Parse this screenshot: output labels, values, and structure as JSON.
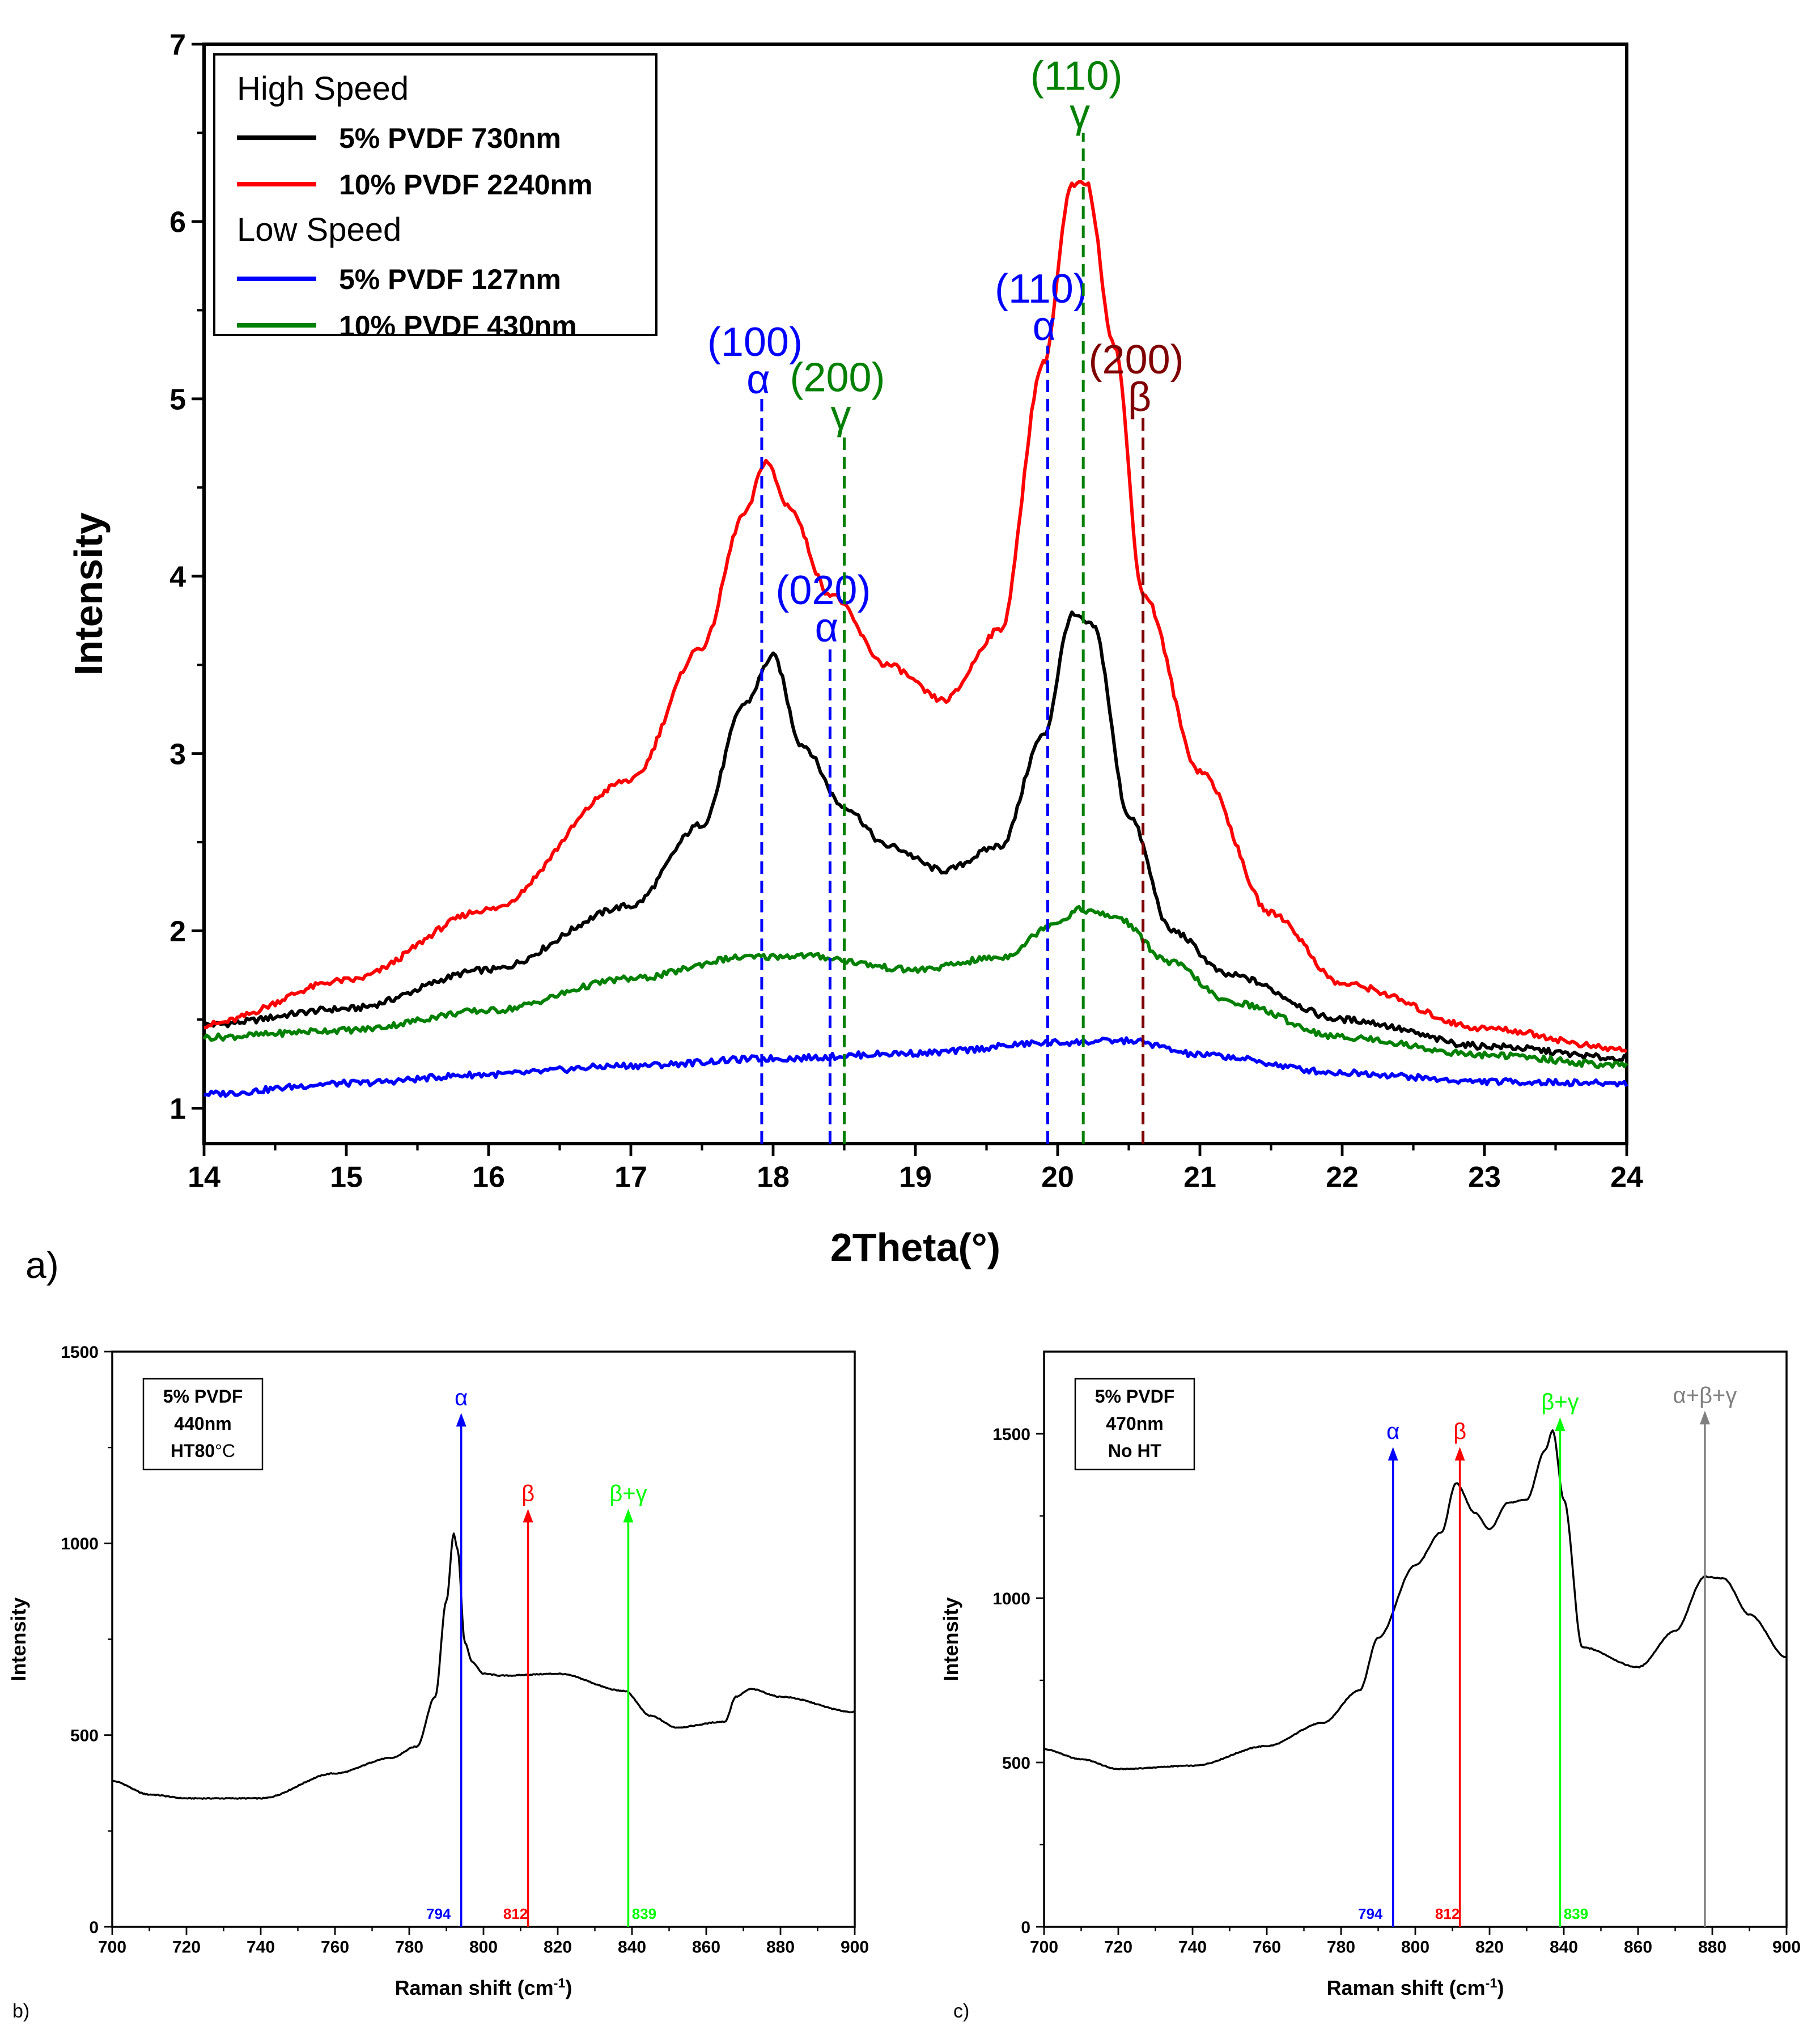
{
  "chart_data": [
    {
      "id": "a",
      "panel_label": "a)",
      "type": "line",
      "xlabel": "2Theta(°)",
      "ylabel": "Intensity",
      "xlim": [
        14,
        24
      ],
      "ylim": [
        0.8,
        7
      ],
      "xticks": [
        14,
        15,
        16,
        17,
        18,
        19,
        20,
        21,
        22,
        23,
        24
      ],
      "yticks": [
        1,
        2,
        3,
        4,
        5,
        6,
        7
      ],
      "legend": {
        "position": "top-left",
        "groups": [
          {
            "title": "High Speed",
            "entries": [
              {
                "label": "5% PVDF 730nm",
                "color": "#000000"
              },
              {
                "label": "10% PVDF 2240nm",
                "color": "#ff0000"
              }
            ]
          },
          {
            "title": "Low Speed",
            "entries": [
              {
                "label": "5% PVDF 127nm",
                "color": "#0000ff"
              },
              {
                "label": "10% PVDF 430nm",
                "color": "#008000"
              }
            ]
          }
        ]
      },
      "series": [
        {
          "name": "5% PVDF 730nm",
          "color": "#000000",
          "x": [
            14,
            15,
            16,
            17,
            17.5,
            17.8,
            18.0,
            18.2,
            18.5,
            18.8,
            19.2,
            19.6,
            19.9,
            20.1,
            20.25,
            20.5,
            20.8,
            21.2,
            22,
            23,
            24
          ],
          "y": [
            1.47,
            1.56,
            1.78,
            2.14,
            2.6,
            3.28,
            3.55,
            3.05,
            2.7,
            2.48,
            2.34,
            2.48,
            3.1,
            3.78,
            3.72,
            2.65,
            2.0,
            1.75,
            1.5,
            1.35,
            1.28
          ]
        },
        {
          "name": "10% PVDF 2240nm",
          "color": "#ff0000",
          "x": [
            14,
            15,
            16,
            17,
            17.5,
            17.8,
            17.95,
            18.1,
            18.4,
            18.8,
            19.2,
            19.6,
            19.9,
            20.1,
            20.2,
            20.4,
            20.6,
            21,
            21.5,
            22,
            23,
            24
          ],
          "y": [
            1.47,
            1.72,
            2.12,
            2.85,
            3.6,
            4.35,
            4.65,
            4.4,
            3.9,
            3.5,
            3.3,
            3.7,
            5.2,
            6.2,
            6.22,
            5.3,
            3.9,
            2.9,
            2.1,
            1.7,
            1.45,
            1.33
          ]
        },
        {
          "name": "5% PVDF 127nm",
          "color": "#0000ff",
          "x": [
            14,
            15,
            16,
            17,
            18,
            19,
            20,
            20.5,
            21,
            22,
            23,
            24
          ],
          "y": [
            1.08,
            1.14,
            1.19,
            1.24,
            1.28,
            1.31,
            1.37,
            1.38,
            1.3,
            1.2,
            1.15,
            1.14
          ]
        },
        {
          "name": "10% PVDF 430nm",
          "color": "#008000",
          "x": [
            14,
            15,
            16,
            17,
            17.8,
            18.2,
            19,
            19.6,
            20.0,
            20.15,
            20.4,
            20.8,
            21.2,
            22,
            23,
            24
          ],
          "y": [
            1.4,
            1.44,
            1.55,
            1.73,
            1.85,
            1.86,
            1.78,
            1.85,
            2.05,
            2.12,
            2.08,
            1.82,
            1.6,
            1.4,
            1.3,
            1.24
          ]
        }
      ],
      "markers": [
        {
          "x": 17.92,
          "y_top": 5.0,
          "color": "#0000ff",
          "labels": [
            "(100)",
            "α"
          ]
        },
        {
          "x": 18.4,
          "y_top": 3.6,
          "color": "#0000ff",
          "labels": [
            "(020)",
            "α"
          ]
        },
        {
          "x": 18.5,
          "y_top": 4.8,
          "color": "#008000",
          "labels": [
            "(200)",
            "γ"
          ]
        },
        {
          "x": 19.93,
          "y_top": 5.3,
          "color": "#0000ff",
          "labels": [
            "(110)",
            "α"
          ]
        },
        {
          "x": 20.18,
          "y_top": 6.5,
          "color": "#008000",
          "labels": [
            "(110)",
            "γ"
          ]
        },
        {
          "x": 20.6,
          "y_top": 4.9,
          "color": "#800000",
          "labels": [
            "(200)",
            "β"
          ]
        }
      ]
    },
    {
      "id": "b",
      "panel_label": "b)",
      "type": "line",
      "xlabel": "Raman shift (cm",
      "xlabel_sup": "-1",
      "xlabel_end": ")",
      "ylabel": "Intensity",
      "xlim": [
        700,
        900
      ],
      "ylim": [
        0,
        1500
      ],
      "xticks": [
        700,
        720,
        740,
        760,
        780,
        800,
        820,
        840,
        860,
        880,
        900
      ],
      "yticks": [
        0,
        500,
        1000,
        1500
      ],
      "note": [
        "5% PVDF",
        "440nm",
        "HT80",
        "°C"
      ],
      "series": [
        {
          "name": "Raman",
          "color": "#000000",
          "x": [
            700,
            710,
            720,
            740,
            760,
            775,
            782,
            787,
            790,
            792,
            793,
            795,
            797,
            800,
            805,
            820,
            838,
            845,
            852,
            865,
            868,
            872,
            880,
            900
          ],
          "y": [
            380,
            345,
            335,
            335,
            400,
            440,
            470,
            600,
            850,
            1025,
            985,
            740,
            690,
            660,
            655,
            660,
            615,
            550,
            520,
            535,
            600,
            620,
            600,
            560
          ]
        }
      ],
      "markers": [
        {
          "x": 794,
          "y_top": 1340,
          "color": "#0000ff",
          "label": "α",
          "value_label": "794"
        },
        {
          "x": 812,
          "y_top": 1090,
          "color": "#ff0000",
          "label": "β",
          "value_label": "812"
        },
        {
          "x": 839,
          "y_top": 1090,
          "color": "#00ff00",
          "label": "β+γ",
          "value_label": "839"
        }
      ]
    },
    {
      "id": "c",
      "panel_label": "c)",
      "type": "line",
      "xlabel": "Raman shift (cm",
      "xlabel_sup": "-1",
      "xlabel_end": ")",
      "ylabel": "Intensity",
      "xlim": [
        700,
        900
      ],
      "ylim": [
        0,
        1750
      ],
      "xticks": [
        700,
        720,
        740,
        760,
        780,
        800,
        820,
        840,
        860,
        880,
        900
      ],
      "yticks": [
        0,
        500,
        1000,
        1500
      ],
      "note": [
        "5% PVDF",
        "470nm",
        "No HT"
      ],
      "series": [
        {
          "name": "Raman",
          "color": "#000000",
          "x": [
            700,
            710,
            720,
            740,
            760,
            775,
            785,
            790,
            800,
            807,
            811,
            816,
            820,
            825,
            830,
            835,
            837,
            840,
            845,
            860,
            870,
            878,
            883,
            890,
            900
          ],
          "y": [
            540,
            510,
            480,
            490,
            550,
            620,
            720,
            880,
            1100,
            1200,
            1350,
            1260,
            1210,
            1290,
            1300,
            1450,
            1510,
            1300,
            850,
            790,
            900,
            1065,
            1060,
            950,
            820
          ]
        }
      ],
      "markers": [
        {
          "x": 794,
          "y_top": 1460,
          "color": "#0000ff",
          "label": "α",
          "value_label": "794"
        },
        {
          "x": 812,
          "y_top": 1460,
          "color": "#ff0000",
          "label": "β",
          "value_label": "812"
        },
        {
          "x": 839,
          "y_top": 1550,
          "color": "#00ff00",
          "label": "β+γ",
          "value_label": "839"
        },
        {
          "x": 878,
          "y_top": 1570,
          "color": "#808080",
          "label": "α+β+γ",
          "value_label": ""
        }
      ]
    }
  ]
}
